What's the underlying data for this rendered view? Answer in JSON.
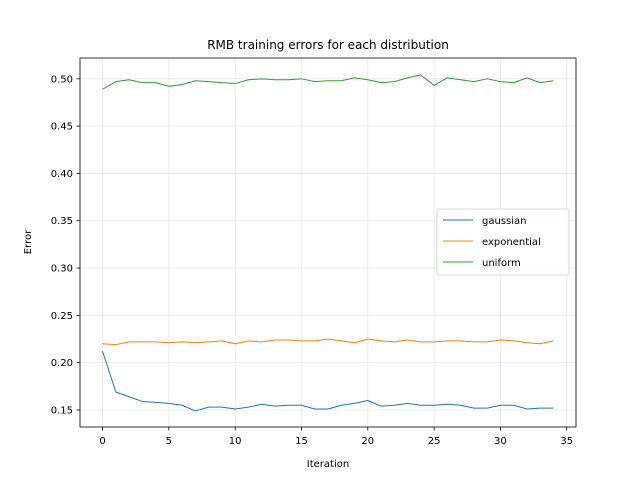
{
  "chart_data": {
    "type": "line",
    "title": "RMB training errors for each distribution",
    "xlabel": "Iteration",
    "ylabel": "Error",
    "xlim": [
      -1.7,
      35.7
    ],
    "ylim": [
      0.132,
      0.522
    ],
    "xticks": [
      0,
      5,
      10,
      15,
      20,
      25,
      30,
      35
    ],
    "yticks": [
      0.15,
      0.2,
      0.25,
      0.3,
      0.35,
      0.4,
      0.45,
      0.5
    ],
    "ytick_labels": [
      "0.15",
      "0.20",
      "0.25",
      "0.30",
      "0.35",
      "0.40",
      "0.45",
      "0.50"
    ],
    "grid": true,
    "legend_position": "center-right",
    "x": [
      0,
      1,
      2,
      3,
      4,
      5,
      6,
      7,
      8,
      9,
      10,
      11,
      12,
      13,
      14,
      15,
      16,
      17,
      18,
      19,
      20,
      21,
      22,
      23,
      24,
      25,
      26,
      27,
      28,
      29,
      30,
      31,
      32,
      33,
      34
    ],
    "series": [
      {
        "name": "gaussian",
        "color": "#1f77b4",
        "values": [
          0.212,
          0.169,
          0.164,
          0.159,
          0.158,
          0.157,
          0.155,
          0.149,
          0.153,
          0.153,
          0.151,
          0.153,
          0.156,
          0.154,
          0.155,
          0.155,
          0.151,
          0.151,
          0.155,
          0.157,
          0.16,
          0.154,
          0.155,
          0.157,
          0.155,
          0.155,
          0.156,
          0.155,
          0.152,
          0.152,
          0.155,
          0.155,
          0.151,
          0.152,
          0.152
        ]
      },
      {
        "name": "exponential",
        "color": "#ff7f0e",
        "values": [
          0.22,
          0.219,
          0.222,
          0.222,
          0.222,
          0.221,
          0.222,
          0.221,
          0.222,
          0.223,
          0.22,
          0.223,
          0.222,
          0.224,
          0.224,
          0.223,
          0.223,
          0.225,
          0.223,
          0.221,
          0.225,
          0.223,
          0.222,
          0.224,
          0.222,
          0.222,
          0.223,
          0.223,
          0.222,
          0.222,
          0.224,
          0.223,
          0.221,
          0.22,
          0.223
        ]
      },
      {
        "name": "uniform",
        "color": "#2ca02c",
        "values": [
          0.489,
          0.497,
          0.499,
          0.496,
          0.496,
          0.492,
          0.494,
          0.498,
          0.497,
          0.496,
          0.495,
          0.499,
          0.5,
          0.499,
          0.499,
          0.5,
          0.497,
          0.498,
          0.498,
          0.501,
          0.499,
          0.496,
          0.497,
          0.501,
          0.504,
          0.493,
          0.501,
          0.499,
          0.497,
          0.5,
          0.497,
          0.496,
          0.501,
          0.496,
          0.498
        ]
      }
    ]
  }
}
